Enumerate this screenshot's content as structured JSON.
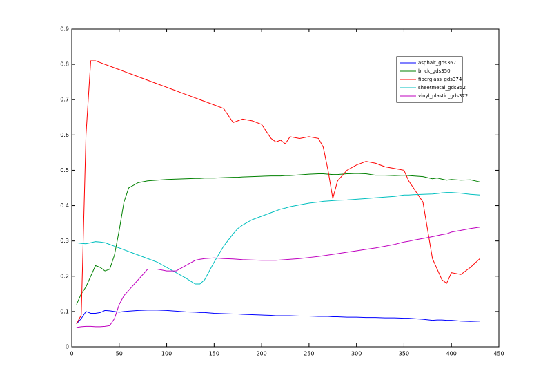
{
  "chart_data": {
    "type": "line",
    "x": [
      5,
      10,
      15,
      20,
      25,
      30,
      35,
      40,
      45,
      50,
      55,
      60,
      70,
      80,
      90,
      100,
      110,
      120,
      130,
      135,
      140,
      150,
      160,
      170,
      175,
      180,
      190,
      200,
      210,
      215,
      220,
      225,
      230,
      240,
      250,
      260,
      265,
      270,
      275,
      280,
      290,
      300,
      310,
      320,
      330,
      340,
      350,
      355,
      360,
      370,
      380,
      385,
      390,
      395,
      400,
      410,
      420,
      430
    ],
    "series": [
      {
        "name": "asphalt_gds367",
        "color": "#0000ff",
        "values": [
          0.065,
          0.08,
          0.1,
          0.095,
          0.095,
          0.097,
          0.103,
          0.102,
          0.1,
          0.098,
          0.1,
          0.101,
          0.103,
          0.104,
          0.104,
          0.103,
          0.101,
          0.099,
          0.098,
          0.097,
          0.097,
          0.095,
          0.094,
          0.093,
          0.093,
          0.092,
          0.091,
          0.09,
          0.089,
          0.088,
          0.088,
          0.088,
          0.088,
          0.087,
          0.087,
          0.086,
          0.086,
          0.086,
          0.085,
          0.085,
          0.084,
          0.084,
          0.083,
          0.083,
          0.082,
          0.082,
          0.081,
          0.081,
          0.08,
          0.078,
          0.075,
          0.076,
          0.076,
          0.075,
          0.075,
          0.073,
          0.072,
          0.073
        ]
      },
      {
        "name": "brick_gds350",
        "color": "#008000",
        "values": [
          0.12,
          0.15,
          0.17,
          0.2,
          0.23,
          0.225,
          0.215,
          0.22,
          0.26,
          0.33,
          0.41,
          0.45,
          0.465,
          0.47,
          0.472,
          0.474,
          0.475,
          0.476,
          0.477,
          0.477,
          0.478,
          0.478,
          0.479,
          0.48,
          0.48,
          0.481,
          0.482,
          0.483,
          0.484,
          0.484,
          0.484,
          0.485,
          0.485,
          0.487,
          0.489,
          0.49,
          0.49,
          0.489,
          0.488,
          0.488,
          0.49,
          0.491,
          0.49,
          0.486,
          0.486,
          0.485,
          0.486,
          0.485,
          0.484,
          0.482,
          0.476,
          0.478,
          0.475,
          0.472,
          0.474,
          0.472,
          0.473,
          0.467
        ]
      },
      {
        "name": "fiberglass_gds374",
        "color": "#ff0000",
        "values": [
          0.065,
          0.09,
          0.6,
          0.81,
          0.81,
          0.805,
          0.8,
          0.795,
          0.79,
          0.785,
          0.78,
          0.775,
          0.765,
          0.755,
          0.745,
          0.735,
          0.725,
          0.715,
          0.705,
          0.7,
          0.695,
          0.685,
          0.675,
          0.635,
          0.64,
          0.645,
          0.64,
          0.63,
          0.59,
          0.58,
          0.585,
          0.575,
          0.595,
          0.59,
          0.595,
          0.59,
          0.565,
          0.5,
          0.42,
          0.47,
          0.5,
          0.515,
          0.525,
          0.52,
          0.51,
          0.505,
          0.5,
          0.47,
          0.45,
          0.41,
          0.25,
          0.22,
          0.19,
          0.18,
          0.21,
          0.205,
          0.225,
          0.25
        ]
      },
      {
        "name": "sheetmetal_gds352",
        "color": "#00bfbf",
        "values": [
          0.295,
          0.293,
          0.292,
          0.295,
          0.298,
          0.297,
          0.295,
          0.29,
          0.285,
          0.28,
          0.275,
          0.27,
          0.26,
          0.25,
          0.24,
          0.225,
          0.21,
          0.195,
          0.178,
          0.178,
          0.19,
          0.24,
          0.285,
          0.32,
          0.335,
          0.345,
          0.36,
          0.37,
          0.38,
          0.385,
          0.39,
          0.393,
          0.397,
          0.402,
          0.407,
          0.41,
          0.412,
          0.413,
          0.414,
          0.415,
          0.416,
          0.418,
          0.42,
          0.422,
          0.424,
          0.426,
          0.43,
          0.43,
          0.431,
          0.432,
          0.433,
          0.434,
          0.436,
          0.437,
          0.437,
          0.435,
          0.432,
          0.43
        ]
      },
      {
        "name": "vinyl_plastic_gds372",
        "color": "#bf00bf",
        "values": [
          0.055,
          0.057,
          0.058,
          0.058,
          0.057,
          0.057,
          0.058,
          0.06,
          0.08,
          0.12,
          0.145,
          0.16,
          0.19,
          0.22,
          0.22,
          0.215,
          0.215,
          0.23,
          0.245,
          0.248,
          0.25,
          0.252,
          0.25,
          0.249,
          0.248,
          0.247,
          0.246,
          0.245,
          0.245,
          0.245,
          0.246,
          0.247,
          0.248,
          0.25,
          0.253,
          0.256,
          0.258,
          0.26,
          0.262,
          0.264,
          0.268,
          0.272,
          0.276,
          0.28,
          0.285,
          0.29,
          0.297,
          0.299,
          0.302,
          0.307,
          0.312,
          0.315,
          0.318,
          0.32,
          0.325,
          0.33,
          0.335,
          0.339
        ]
      }
    ],
    "xlim": [
      0,
      450
    ],
    "xticks": [
      0,
      50,
      100,
      150,
      200,
      250,
      300,
      350,
      400,
      450
    ],
    "ylim": [
      0,
      0.9
    ],
    "yticks": [
      0,
      0.1,
      0.2,
      0.3,
      0.4,
      0.5,
      0.6,
      0.7,
      0.8,
      0.9
    ],
    "grid": false,
    "legend": "upper right"
  }
}
